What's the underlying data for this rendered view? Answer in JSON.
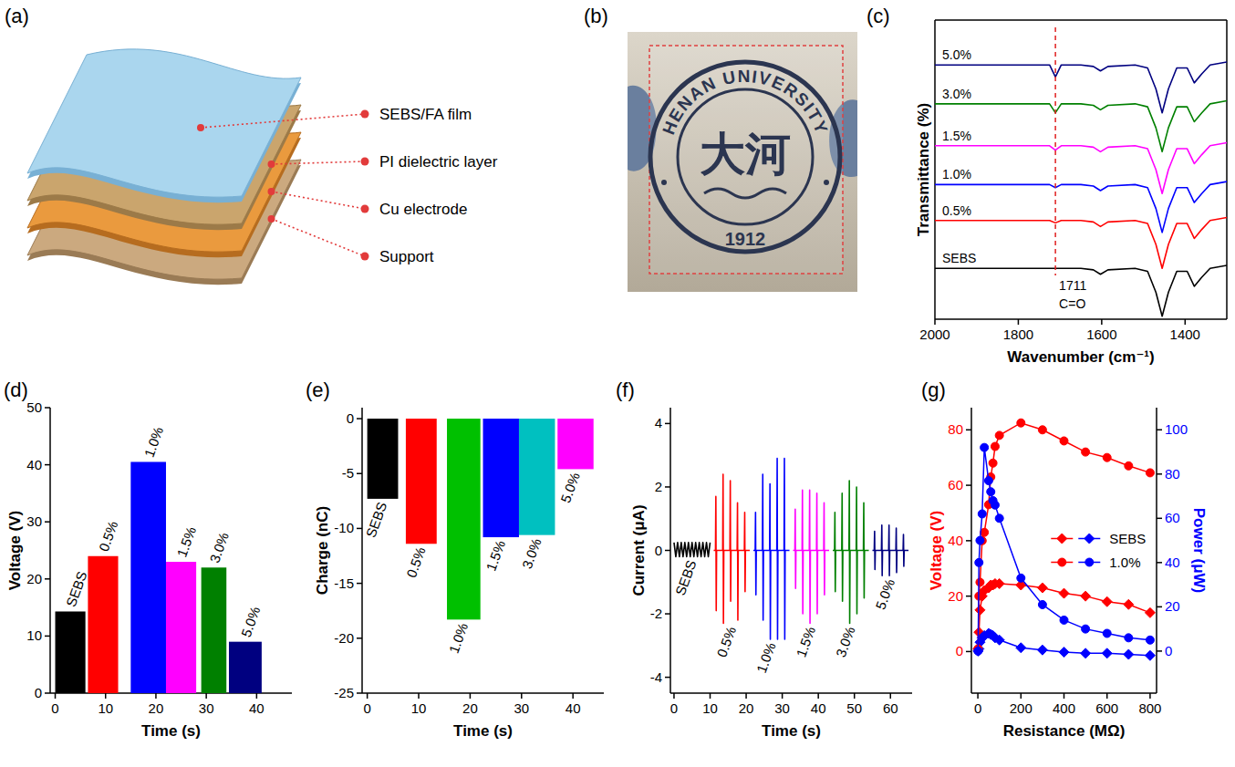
{
  "panel_a": {
    "title": "(a)",
    "layers": [
      "SEBS/FA film",
      "PI dielectric layer",
      "Cu electrode",
      "Support"
    ]
  },
  "panel_b": {
    "title": "(b)",
    "seal_text": "HENAN UNIVERSITY",
    "emblem": "大河",
    "year": "1912"
  },
  "chart_data": [
    {
      "type": "line",
      "title": "(c)",
      "x_label": "Wavenumber (cm⁻¹)",
      "y_label": "Transmittance (%)",
      "x": [
        2000,
        1850,
        1760,
        1725,
        1711,
        1697,
        1650,
        1620,
        1603,
        1585,
        1520,
        1490,
        1470,
        1455,
        1440,
        1420,
        1395,
        1378,
        1360,
        1340,
        1300
      ],
      "xlim": [
        2000,
        1300
      ],
      "xticks": [
        2000,
        1800,
        1600,
        1400
      ],
      "ylim": [
        0,
        100
      ],
      "tick_labels": "x",
      "series": [
        {
          "name": "SEBS",
          "color": "#000000",
          "values": [
            17,
            17,
            17,
            17,
            17,
            17,
            17,
            16.5,
            15,
            16.5,
            17,
            16,
            9,
            1,
            9,
            16,
            16,
            11,
            14,
            17,
            18
          ]
        },
        {
          "name": "0.5%",
          "color": "#ff0000",
          "values": [
            33,
            33,
            33,
            33,
            32.2,
            33,
            33,
            32.5,
            31,
            32.5,
            33,
            32,
            25,
            17,
            25,
            32,
            32,
            27,
            30,
            33,
            34
          ]
        },
        {
          "name": "1.0%",
          "color": "#0000ff",
          "values": [
            45,
            45,
            45,
            45,
            44,
            45,
            45,
            44.5,
            43,
            44.5,
            45,
            44,
            37,
            29,
            37,
            44,
            44,
            39,
            42,
            45,
            46
          ]
        },
        {
          "name": "1.5%",
          "color": "#ff00ff",
          "values": [
            58,
            58,
            58,
            58,
            56.5,
            58,
            58,
            57.5,
            56,
            57.5,
            58,
            57,
            50,
            42,
            50,
            57,
            57,
            52,
            55,
            58,
            59
          ]
        },
        {
          "name": "3.0%",
          "color": "#008000",
          "values": [
            72,
            72,
            72,
            72,
            69,
            72,
            72,
            71.5,
            70,
            71.5,
            72,
            71,
            64,
            56,
            64,
            71,
            71,
            66,
            69,
            72,
            73
          ]
        },
        {
          "name": "5.0%",
          "color": "#000080",
          "values": [
            85,
            85,
            85,
            85,
            81,
            85,
            85,
            84.5,
            83,
            84.5,
            85,
            84,
            77,
            69,
            77,
            84,
            84,
            79,
            82,
            85,
            86
          ]
        }
      ],
      "annotations": [
        {
          "x": 1711,
          "text": "1711"
        },
        {
          "x": 1711,
          "text": "C=O"
        }
      ]
    },
    {
      "type": "bar",
      "title": "(d)",
      "x_label": "Time (s)",
      "y_label": "Voltage (V)",
      "categories": [
        "SEBS",
        "0.5%",
        "1.0%",
        "1.5%",
        "3.0%",
        "5.0%"
      ],
      "values": [
        14.3,
        24,
        40.5,
        23,
        22,
        9
      ],
      "x_start": [
        0,
        6.5,
        15,
        22,
        29,
        34.5
      ],
      "x_end": [
        6,
        12.5,
        22,
        28,
        34,
        41
      ],
      "colors": [
        "#000000",
        "#ff0000",
        "#0000ff",
        "#ff00ff",
        "#008000",
        "#000080"
      ],
      "xlim": [
        -1,
        47
      ],
      "xticks": [
        0,
        10,
        20,
        30,
        40
      ],
      "ylim": [
        0,
        50
      ],
      "yticks": [
        0,
        10,
        20,
        30,
        40,
        50
      ]
    },
    {
      "type": "bar",
      "title": "(e)",
      "x_label": "Time (s)",
      "y_label": "Charge (nC)",
      "categories": [
        "SEBS",
        "0.5%",
        "1.0%",
        "1.5%",
        "3.0%",
        "5.0%"
      ],
      "values": [
        -7.3,
        -11.4,
        -18.3,
        -10.8,
        -10.6,
        -4.6
      ],
      "x_start": [
        0,
        7.5,
        15.5,
        22.5,
        29.5,
        37
      ],
      "x_end": [
        6,
        13.5,
        22,
        29.5,
        36.5,
        44
      ],
      "colors": [
        "#000000",
        "#ff0000",
        "#00c000",
        "#0000ff",
        "#00c0c0",
        "#ff00ff"
      ],
      "xlim": [
        -1,
        46
      ],
      "xticks": [
        0,
        10,
        20,
        30,
        40
      ],
      "ylim": [
        -25,
        1
      ],
      "yticks": [
        0,
        -5,
        -10,
        -15,
        -20,
        -25
      ]
    },
    {
      "type": "line",
      "title": "(f)",
      "x_label": "Time (s)",
      "y_label": "Current (μA)",
      "xlim": [
        -1,
        66
      ],
      "xticks": [
        0,
        10,
        20,
        30,
        40,
        50,
        60
      ],
      "ylim": [
        -4.5,
        4.5
      ],
      "yticks": [
        -4,
        -2,
        0,
        2,
        4
      ],
      "series": [
        {
          "name": "SEBS",
          "color": "#000000",
          "x": [
            0,
            0.5,
            1,
            1.5,
            2,
            2.5,
            3,
            3.5,
            4,
            4.5,
            5,
            5.5,
            6,
            6.5,
            7,
            7.5,
            8,
            8.5,
            9,
            9.5,
            10
          ],
          "values": [
            0.25,
            -0.2,
            0.25,
            -0.2,
            0.25,
            -0.2,
            0.25,
            -0.2,
            0.25,
            -0.2,
            0.25,
            -0.2,
            0.25,
            -0.2,
            0.25,
            -0.2,
            0.25,
            -0.2,
            0.25,
            -0.2,
            0.25
          ]
        },
        {
          "name": "0.5%",
          "color": "#ff0000",
          "x": [
            11,
            11.5,
            11.6,
            11.7,
            11.8,
            13.5,
            13.6,
            13.7,
            13.8,
            15.5,
            15.6,
            15.7,
            15.8,
            17.5,
            17.6,
            17.7,
            17.8,
            19.5,
            19.6,
            19.7,
            19.8,
            21
          ],
          "values": [
            0,
            0,
            1.7,
            -1.9,
            0,
            0,
            2.4,
            -2.3,
            0,
            0,
            2.2,
            -1.6,
            0,
            0,
            1.5,
            -2.2,
            0,
            0,
            1.2,
            -1.3,
            0,
            0
          ]
        },
        {
          "name": "1.0%",
          "color": "#0000ff",
          "x": [
            22,
            22.5,
            22.6,
            22.7,
            22.8,
            24.5,
            24.6,
            24.7,
            24.8,
            26.5,
            26.6,
            26.7,
            26.8,
            28.5,
            28.6,
            28.7,
            28.8,
            30.5,
            30.6,
            30.7,
            30.8,
            32
          ],
          "values": [
            0,
            0,
            1.2,
            -1.4,
            0,
            0,
            2.4,
            -2.2,
            0,
            0,
            2.1,
            -2.8,
            0,
            0,
            2.9,
            -2.8,
            0,
            0,
            2.9,
            -2.8,
            0,
            0
          ]
        },
        {
          "name": "1.5%",
          "color": "#ff00ff",
          "x": [
            33,
            33.5,
            33.6,
            33.7,
            33.8,
            35.5,
            35.6,
            35.7,
            35.8,
            37.5,
            37.6,
            37.7,
            37.8,
            39.5,
            39.6,
            39.7,
            39.8,
            41.5,
            41.6,
            41.7,
            41.8,
            43
          ],
          "values": [
            0,
            0,
            1.3,
            -1.2,
            0,
            0,
            1.9,
            -2.0,
            0,
            0,
            1.9,
            -2.3,
            0,
            0,
            1.8,
            -2.0,
            0,
            0,
            1.5,
            -1.4,
            0,
            0
          ]
        },
        {
          "name": "3.0%",
          "color": "#008000",
          "x": [
            44,
            44.5,
            44.6,
            44.7,
            44.8,
            46.5,
            46.6,
            46.7,
            46.8,
            48.5,
            48.6,
            48.7,
            48.8,
            50.5,
            50.6,
            50.7,
            50.8,
            52.5,
            52.6,
            52.7,
            52.8,
            54
          ],
          "values": [
            0,
            0,
            1.2,
            -1.3,
            0,
            0,
            1.8,
            -1.6,
            0,
            0,
            2.2,
            -2.3,
            0,
            0,
            2.0,
            -2.0,
            0,
            0,
            1.5,
            -1.5,
            0,
            0
          ]
        },
        {
          "name": "5.0%",
          "color": "#000080",
          "x": [
            55,
            55.5,
            55.6,
            55.7,
            55.8,
            57.5,
            57.6,
            57.7,
            57.8,
            59.5,
            59.6,
            59.7,
            59.8,
            61.5,
            61.6,
            61.7,
            61.8,
            63.5,
            63.6,
            63.7,
            63.8,
            65
          ],
          "values": [
            0,
            0,
            0.6,
            -0.6,
            0,
            0,
            0.8,
            -0.8,
            0,
            0,
            0.8,
            -0.8,
            0,
            0,
            0.7,
            -0.7,
            0,
            0,
            0.5,
            -0.5,
            0,
            0
          ]
        }
      ]
    },
    {
      "type": "line",
      "title": "(g)",
      "x_label": "Resistance (MΩ)",
      "y_label": "Voltage (V)",
      "y2_label": "Power (μW)",
      "x": [
        1,
        5,
        10,
        20,
        30,
        50,
        60,
        70,
        80,
        100,
        200,
        300,
        400,
        500,
        600,
        700,
        800
      ],
      "xlim": [
        -30,
        830
      ],
      "xticks": [
        0,
        200,
        400,
        600,
        800
      ],
      "ylim": [
        -15,
        88
      ],
      "yticks": [
        0,
        20,
        40,
        60,
        80
      ],
      "y2lim": [
        -19,
        110
      ],
      "y2ticks": [
        0,
        20,
        40,
        60,
        80,
        100
      ],
      "legend": "right",
      "series": [
        {
          "name": "SEBS",
          "color": "#ff0000",
          "marker": "diamond",
          "values": [
            1,
            7,
            15,
            20,
            22,
            23,
            24,
            24,
            24.5,
            24.5,
            24,
            23,
            21,
            20,
            18,
            17,
            14
          ]
        },
        {
          "name": "SEBS",
          "color": "#0000ff",
          "marker": "diamond",
          "axis": "y2",
          "values": [
            0,
            1,
            4,
            6,
            7,
            8,
            7.5,
            7,
            6,
            5,
            1.5,
            0.5,
            -0.5,
            -1,
            -1,
            -1.5,
            -2
          ]
        },
        {
          "name": "1.0%",
          "color": "#ff0000",
          "marker": "circle",
          "values": [
            1,
            20,
            25,
            40,
            43,
            53,
            63,
            68,
            74,
            78,
            82.5,
            80,
            76,
            72,
            70,
            67,
            64.5
          ]
        },
        {
          "name": "1.0%",
          "color": "#0000ff",
          "marker": "circle",
          "axis": "y2",
          "values": [
            0,
            40,
            50,
            62,
            92,
            77,
            72,
            68,
            66,
            60,
            33,
            21,
            14,
            10,
            8,
            6,
            5
          ]
        }
      ]
    }
  ]
}
